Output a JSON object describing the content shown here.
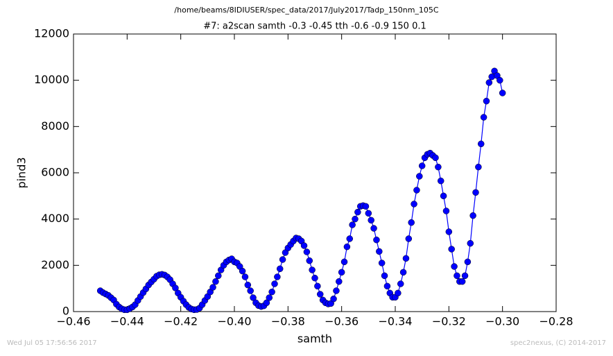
{
  "chart_data": {
    "type": "line",
    "suptitle": "/home/beams/8IDIUSER/spec_data/2017/July2017/Tadp_150nm_105C",
    "title": "#7: a2scan  samth -0.3 -0.45  tth -0.6 -0.9  150 0.1",
    "x_label": "samth",
    "y_label": "pind3",
    "footer_left": "Wed Jul 05 17:56:56 2017",
    "footer_right": "spec2nexus, (C) 2014-2017",
    "xlim": [
      -0.46,
      -0.28
    ],
    "xticks": [
      {
        "value": -0.46,
        "label": "−0.46"
      },
      {
        "value": -0.44,
        "label": "−0.44"
      },
      {
        "value": -0.42,
        "label": "−0.42"
      },
      {
        "value": -0.4,
        "label": "−0.40"
      },
      {
        "value": -0.38,
        "label": "−0.38"
      },
      {
        "value": -0.36,
        "label": "−0.36"
      },
      {
        "value": -0.34,
        "label": "−0.34"
      },
      {
        "value": -0.32,
        "label": "−0.32"
      },
      {
        "value": -0.3,
        "label": "−0.30"
      },
      {
        "value": -0.28,
        "label": "−0.28"
      }
    ],
    "ylim": [
      0,
      12000
    ],
    "yticks": [
      0,
      2000,
      4000,
      6000,
      8000,
      10000,
      12000
    ],
    "x": [
      -0.45,
      -0.449,
      -0.448,
      -0.447,
      -0.446,
      -0.445,
      -0.444,
      -0.443,
      -0.442,
      -0.441,
      -0.44,
      -0.439,
      -0.438,
      -0.437,
      -0.436,
      -0.435,
      -0.434,
      -0.433,
      -0.432,
      -0.431,
      -0.43,
      -0.429,
      -0.428,
      -0.427,
      -0.426,
      -0.425,
      -0.424,
      -0.423,
      -0.422,
      -0.421,
      -0.42,
      -0.419,
      -0.418,
      -0.417,
      -0.416,
      -0.415,
      -0.414,
      -0.413,
      -0.412,
      -0.411,
      -0.41,
      -0.409,
      -0.408,
      -0.407,
      -0.406,
      -0.405,
      -0.404,
      -0.403,
      -0.402,
      -0.401,
      -0.4,
      -0.399,
      -0.398,
      -0.397,
      -0.396,
      -0.395,
      -0.394,
      -0.393,
      -0.392,
      -0.391,
      -0.39,
      -0.389,
      -0.388,
      -0.387,
      -0.386,
      -0.385,
      -0.384,
      -0.383,
      -0.382,
      -0.381,
      -0.38,
      -0.379,
      -0.378,
      -0.377,
      -0.376,
      -0.375,
      -0.374,
      -0.373,
      -0.372,
      -0.371,
      -0.37,
      -0.369,
      -0.368,
      -0.367,
      -0.366,
      -0.365,
      -0.364,
      -0.363,
      -0.362,
      -0.361,
      -0.36,
      -0.359,
      -0.358,
      -0.357,
      -0.356,
      -0.355,
      -0.354,
      -0.353,
      -0.352,
      -0.351,
      -0.35,
      -0.349,
      -0.348,
      -0.347,
      -0.346,
      -0.345,
      -0.344,
      -0.343,
      -0.342,
      -0.341,
      -0.34,
      -0.339,
      -0.338,
      -0.337,
      -0.336,
      -0.335,
      -0.334,
      -0.333,
      -0.332,
      -0.331,
      -0.33,
      -0.329,
      -0.328,
      -0.327,
      -0.326,
      -0.325,
      -0.324,
      -0.323,
      -0.322,
      -0.321,
      -0.32,
      -0.319,
      -0.318,
      -0.317,
      -0.316,
      -0.315,
      -0.314,
      -0.313,
      -0.312,
      -0.311,
      -0.31,
      -0.309,
      -0.308,
      -0.307,
      -0.306,
      -0.305,
      -0.304,
      -0.303,
      -0.302,
      -0.301,
      -0.3
    ],
    "series": [
      {
        "color": "#0000ff",
        "values": [
          900,
          820,
          760,
          700,
          600,
          500,
          320,
          200,
          120,
          80,
          80,
          130,
          200,
          300,
          480,
          650,
          820,
          980,
          1150,
          1280,
          1400,
          1530,
          1590,
          1610,
          1580,
          1500,
          1380,
          1200,
          1020,
          800,
          620,
          450,
          300,
          180,
          110,
          80,
          90,
          150,
          300,
          480,
          650,
          850,
          1050,
          1300,
          1550,
          1800,
          2000,
          2150,
          2230,
          2280,
          2150,
          2100,
          1950,
          1750,
          1500,
          1150,
          900,
          600,
          380,
          260,
          220,
          250,
          380,
          600,
          850,
          1200,
          1500,
          1850,
          2250,
          2550,
          2750,
          2900,
          3050,
          3180,
          3150,
          3050,
          2850,
          2580,
          2200,
          1800,
          1450,
          1100,
          750,
          500,
          380,
          330,
          350,
          550,
          900,
          1300,
          1700,
          2150,
          2800,
          3150,
          3750,
          4000,
          4300,
          4550,
          4580,
          4550,
          4250,
          3950,
          3600,
          3100,
          2600,
          2100,
          1550,
          1100,
          800,
          620,
          620,
          800,
          1200,
          1700,
          2300,
          3150,
          3850,
          4650,
          5250,
          5850,
          6300,
          6650,
          6800,
          6850,
          6750,
          6650,
          6250,
          5650,
          5000,
          4350,
          3450,
          2700,
          1950,
          1550,
          1300,
          1300,
          1550,
          2150,
          2950,
          4150,
          5150,
          6250,
          7250,
          8400,
          9100,
          9900,
          10150,
          10400,
          10200,
          10000,
          9450
        ]
      }
    ]
  }
}
